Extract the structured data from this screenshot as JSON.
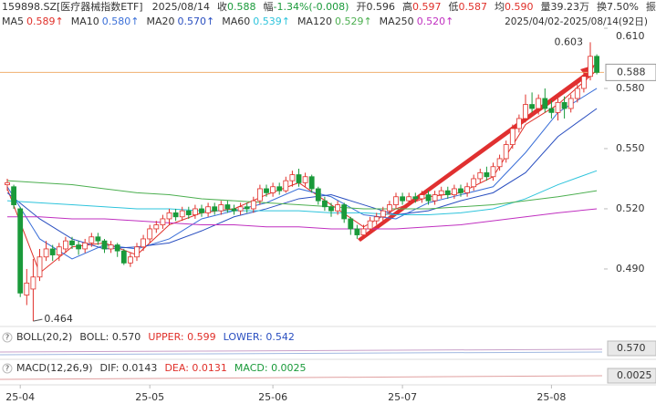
{
  "header": {
    "code": "159898.SZ[医疗器械指数ETF]",
    "date": "2025/08/14",
    "stats": [
      {
        "label": "收",
        "value": "0.588",
        "color": "#1a9a3a"
      },
      {
        "label": "幅",
        "value": "-1.34%(-0.008)",
        "color": "#1a9a3a"
      },
      {
        "label": "开",
        "value": "0.596",
        "color": "#333333"
      },
      {
        "label": "高",
        "value": "0.597",
        "color": "#e0302a"
      },
      {
        "label": "低",
        "value": "0.587",
        "color": "#e0302a"
      },
      {
        "label": "均",
        "value": "0.590",
        "color": "#e0302a"
      },
      {
        "label": "量",
        "value": "39.23万",
        "color": "#333333"
      },
      {
        "label": "换",
        "value": "7.50%",
        "color": "#333333"
      },
      {
        "label": "振"
      }
    ],
    "range": "2025/04/02-2025/08/14(92日)"
  },
  "chart_data": {
    "type": "candlestick",
    "ylim": [
      0.4627,
      0.6159
    ],
    "yticks": [
      {
        "value": 0.61,
        "label": "0.610"
      },
      {
        "value": 0.58,
        "label": "0.580"
      },
      {
        "value": 0.55,
        "label": "0.550"
      },
      {
        "value": 0.52,
        "label": "0.520"
      },
      {
        "value": 0.49,
        "label": "0.490"
      }
    ],
    "up_color": "#e0302a",
    "down_color": "#1a9a3a",
    "candles": [
      [
        0.532,
        0.533,
        0.535,
        0.529
      ],
      [
        0.531,
        0.522,
        0.532,
        0.52
      ],
      [
        0.52,
        0.478,
        0.521,
        0.476
      ],
      [
        0.477,
        0.483,
        0.49,
        0.472
      ],
      [
        0.48,
        0.486,
        0.495,
        0.464
      ],
      [
        0.486,
        0.496,
        0.5,
        0.484
      ],
      [
        0.496,
        0.5,
        0.504,
        0.494
      ],
      [
        0.5,
        0.497,
        0.502,
        0.494
      ],
      [
        0.497,
        0.501,
        0.503,
        0.494
      ],
      [
        0.5,
        0.504,
        0.506,
        0.498
      ],
      [
        0.504,
        0.502,
        0.506,
        0.5
      ],
      [
        0.502,
        0.5,
        0.504,
        0.497
      ],
      [
        0.5,
        0.503,
        0.505,
        0.498
      ],
      [
        0.503,
        0.506,
        0.508,
        0.501
      ],
      [
        0.506,
        0.504,
        0.508,
        0.502
      ],
      [
        0.504,
        0.5,
        0.505,
        0.498
      ],
      [
        0.5,
        0.502,
        0.504,
        0.498
      ],
      [
        0.502,
        0.499,
        0.503,
        0.496
      ],
      [
        0.499,
        0.493,
        0.5,
        0.492
      ],
      [
        0.493,
        0.496,
        0.498,
        0.491
      ],
      [
        0.496,
        0.501,
        0.503,
        0.494
      ],
      [
        0.501,
        0.505,
        0.507,
        0.499
      ],
      [
        0.505,
        0.51,
        0.512,
        0.503
      ],
      [
        0.51,
        0.512,
        0.514,
        0.508
      ],
      [
        0.512,
        0.515,
        0.517,
        0.51
      ],
      [
        0.515,
        0.518,
        0.52,
        0.512
      ],
      [
        0.518,
        0.516,
        0.52,
        0.514
      ],
      [
        0.516,
        0.519,
        0.521,
        0.514
      ],
      [
        0.519,
        0.517,
        0.521,
        0.515
      ],
      [
        0.517,
        0.52,
        0.522,
        0.515
      ],
      [
        0.52,
        0.518,
        0.522,
        0.516
      ],
      [
        0.518,
        0.521,
        0.523,
        0.516
      ],
      [
        0.521,
        0.519,
        0.523,
        0.517
      ],
      [
        0.519,
        0.522,
        0.524,
        0.517
      ],
      [
        0.522,
        0.52,
        0.524,
        0.518
      ],
      [
        0.52,
        0.519,
        0.522,
        0.517
      ],
      [
        0.519,
        0.521,
        0.523,
        0.517
      ],
      [
        0.521,
        0.52,
        0.523,
        0.518
      ],
      [
        0.52,
        0.524,
        0.526,
        0.518
      ],
      [
        0.524,
        0.53,
        0.532,
        0.522
      ],
      [
        0.53,
        0.528,
        0.532,
        0.526
      ],
      [
        0.528,
        0.531,
        0.533,
        0.526
      ],
      [
        0.531,
        0.529,
        0.533,
        0.527
      ],
      [
        0.529,
        0.534,
        0.536,
        0.528
      ],
      [
        0.534,
        0.537,
        0.539,
        0.531
      ],
      [
        0.537,
        0.533,
        0.54,
        0.531
      ],
      [
        0.533,
        0.536,
        0.538,
        0.531
      ],
      [
        0.536,
        0.53,
        0.537,
        0.528
      ],
      [
        0.53,
        0.524,
        0.531,
        0.522
      ],
      [
        0.524,
        0.521,
        0.526,
        0.519
      ],
      [
        0.521,
        0.519,
        0.523,
        0.516
      ],
      [
        0.519,
        0.522,
        0.524,
        0.517
      ],
      [
        0.522,
        0.515,
        0.523,
        0.513
      ],
      [
        0.515,
        0.51,
        0.516,
        0.507
      ],
      [
        0.51,
        0.507,
        0.512,
        0.505
      ],
      [
        0.507,
        0.51,
        0.512,
        0.505
      ],
      [
        0.51,
        0.514,
        0.516,
        0.508
      ],
      [
        0.514,
        0.516,
        0.518,
        0.512
      ],
      [
        0.516,
        0.519,
        0.521,
        0.514
      ],
      [
        0.519,
        0.522,
        0.524,
        0.517
      ],
      [
        0.522,
        0.526,
        0.528,
        0.52
      ],
      [
        0.526,
        0.524,
        0.528,
        0.522
      ],
      [
        0.524,
        0.526,
        0.528,
        0.522
      ],
      [
        0.526,
        0.525,
        0.528,
        0.523
      ],
      [
        0.525,
        0.527,
        0.529,
        0.523
      ],
      [
        0.527,
        0.524,
        0.529,
        0.522
      ],
      [
        0.524,
        0.527,
        0.529,
        0.522
      ],
      [
        0.527,
        0.529,
        0.531,
        0.525
      ],
      [
        0.529,
        0.527,
        0.531,
        0.525
      ],
      [
        0.527,
        0.53,
        0.532,
        0.525
      ],
      [
        0.53,
        0.528,
        0.532,
        0.526
      ],
      [
        0.528,
        0.531,
        0.533,
        0.526
      ],
      [
        0.531,
        0.535,
        0.537,
        0.529
      ],
      [
        0.535,
        0.538,
        0.54,
        0.533
      ],
      [
        0.538,
        0.536,
        0.541,
        0.534
      ],
      [
        0.536,
        0.541,
        0.543,
        0.534
      ],
      [
        0.541,
        0.545,
        0.547,
        0.539
      ],
      [
        0.545,
        0.552,
        0.554,
        0.543
      ],
      [
        0.552,
        0.56,
        0.562,
        0.55
      ],
      [
        0.56,
        0.565,
        0.567,
        0.558
      ],
      [
        0.565,
        0.572,
        0.577,
        0.563
      ],
      [
        0.572,
        0.57,
        0.578,
        0.568
      ],
      [
        0.57,
        0.575,
        0.577,
        0.567
      ],
      [
        0.575,
        0.57,
        0.58,
        0.568
      ],
      [
        0.57,
        0.568,
        0.574,
        0.565
      ],
      [
        0.568,
        0.573,
        0.575,
        0.564
      ],
      [
        0.573,
        0.57,
        0.576,
        0.565
      ],
      [
        0.57,
        0.575,
        0.577,
        0.568
      ],
      [
        0.575,
        0.58,
        0.582,
        0.573
      ],
      [
        0.58,
        0.586,
        0.588,
        0.578
      ],
      [
        0.586,
        0.596,
        0.603,
        0.584
      ],
      [
        0.596,
        0.588,
        0.597,
        0.587
      ]
    ],
    "series": [
      {
        "name": "MA5",
        "label": "0.589↑",
        "color": "#e0302a",
        "x": [
          0,
          5,
          10,
          15,
          20,
          25,
          30,
          35,
          40,
          45,
          50,
          55,
          60,
          65,
          70,
          75,
          80,
          85,
          91
        ],
        "values": [
          0.53,
          0.488,
          0.501,
          0.503,
          0.497,
          0.512,
          0.518,
          0.52,
          0.527,
          0.533,
          0.522,
          0.511,
          0.52,
          0.526,
          0.528,
          0.536,
          0.562,
          0.572,
          0.589
        ]
      },
      {
        "name": "MA10",
        "label": "0.580↑",
        "color": "#3a6fd8",
        "x": [
          0,
          5,
          10,
          15,
          20,
          25,
          30,
          35,
          40,
          45,
          50,
          55,
          60,
          65,
          70,
          75,
          80,
          85,
          91
        ],
        "values": [
          0.531,
          0.505,
          0.495,
          0.502,
          0.5,
          0.505,
          0.515,
          0.519,
          0.523,
          0.53,
          0.526,
          0.517,
          0.515,
          0.523,
          0.527,
          0.531,
          0.548,
          0.568,
          0.58
        ]
      },
      {
        "name": "MA20",
        "label": "0.570↑",
        "color": "#2a4fc0",
        "x": [
          0,
          5,
          10,
          15,
          20,
          25,
          30,
          35,
          40,
          45,
          50,
          55,
          60,
          65,
          70,
          75,
          80,
          85,
          91
        ],
        "values": [
          0.528,
          0.515,
          0.505,
          0.5,
          0.501,
          0.503,
          0.509,
          0.516,
          0.52,
          0.525,
          0.527,
          0.522,
          0.517,
          0.519,
          0.524,
          0.528,
          0.538,
          0.556,
          0.57
        ]
      },
      {
        "name": "MA60",
        "label": "0.539↑",
        "color": "#2ec4dc",
        "x": [
          0,
          5,
          10,
          15,
          20,
          25,
          30,
          35,
          40,
          45,
          50,
          55,
          60,
          65,
          70,
          75,
          80,
          85,
          91
        ],
        "values": [
          0.524,
          0.523,
          0.522,
          0.521,
          0.52,
          0.52,
          0.519,
          0.519,
          0.519,
          0.519,
          0.518,
          0.518,
          0.517,
          0.517,
          0.518,
          0.52,
          0.525,
          0.532,
          0.539
        ]
      },
      {
        "name": "MA120",
        "label": "0.529↑",
        "color": "#4caf50",
        "x": [
          0,
          5,
          10,
          15,
          20,
          25,
          30,
          35,
          40,
          45,
          50,
          55,
          60,
          65,
          70,
          75,
          80,
          85,
          91
        ],
        "values": [
          0.534,
          0.533,
          0.532,
          0.53,
          0.528,
          0.527,
          0.525,
          0.524,
          0.523,
          0.522,
          0.521,
          0.52,
          0.52,
          0.52,
          0.521,
          0.522,
          0.524,
          0.526,
          0.529
        ]
      },
      {
        "name": "MA250",
        "label": "0.520↑",
        "color": "#c030c0",
        "x": [
          0,
          5,
          10,
          15,
          20,
          25,
          30,
          35,
          40,
          45,
          50,
          55,
          60,
          65,
          70,
          75,
          80,
          85,
          91
        ],
        "values": [
          0.516,
          0.516,
          0.515,
          0.515,
          0.514,
          0.513,
          0.512,
          0.512,
          0.511,
          0.511,
          0.51,
          0.51,
          0.51,
          0.511,
          0.512,
          0.514,
          0.516,
          0.518,
          0.52
        ]
      }
    ],
    "last_price": 0.588,
    "high_mark": {
      "value": 0.603,
      "index": 90
    },
    "low_mark": {
      "value": 0.464,
      "index": 4
    },
    "month_ticks": [
      {
        "value": 2,
        "label": "25-04"
      },
      {
        "value": 22,
        "label": "25-05"
      },
      {
        "value": 41,
        "label": "25-06"
      },
      {
        "value": 61,
        "label": "25-07"
      },
      {
        "value": 84,
        "label": "25-08"
      }
    ]
  },
  "boll": {
    "items": [
      {
        "text": "BOLL(20,2)",
        "color": "#333333"
      },
      {
        "text": "BOLL: 0.570",
        "color": "#333333"
      },
      {
        "text": "UPPER: 0.599",
        "color": "#e0302a"
      },
      {
        "text": "LOWER: 0.542",
        "color": "#2a4fc0"
      }
    ],
    "tag": "0.570"
  },
  "macd": {
    "items": [
      {
        "text": "MACD(12,26,9)",
        "color": "#333333"
      },
      {
        "text": "DIF: 0.0143",
        "color": "#333333"
      },
      {
        "text": "DEA: 0.0131",
        "color": "#e0302a"
      },
      {
        "text": "MACD: 0.0025",
        "color": "#1a9a3a"
      }
    ],
    "tag": "0.0025"
  }
}
